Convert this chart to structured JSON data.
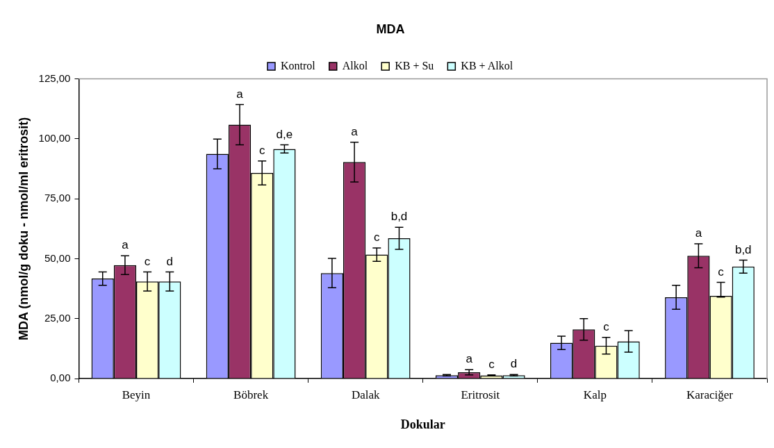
{
  "chart_data": {
    "type": "bar",
    "title": "MDA",
    "xlabel": "Dokular",
    "ylabel": "MDA (nmol/g doku - nmol/ml eritrosit)",
    "categories": [
      "Beyin",
      "Böbrek",
      "Dalak",
      "Eritrosit",
      "Kalp",
      "Karaciğer"
    ],
    "ylim": [
      0,
      125
    ],
    "yticks": [
      {
        "value": 0,
        "label": "0,00"
      },
      {
        "value": 25,
        "label": "25,00"
      },
      {
        "value": 50,
        "label": "50,00"
      },
      {
        "value": 75,
        "label": "75,00"
      },
      {
        "value": 100,
        "label": "100,00"
      },
      {
        "value": 125,
        "label": "125,00"
      }
    ],
    "grid": false,
    "legend": "top",
    "series": [
      {
        "name": "Kontrol",
        "color": "#9999ff",
        "values": [
          41.7,
          93.7,
          44.0,
          1.4,
          14.9,
          33.9
        ],
        "errors": [
          2.8,
          6.2,
          6.1,
          0.3,
          2.8,
          5.0
        ]
      },
      {
        "name": "Alkol",
        "color": "#993366",
        "values": [
          47.3,
          105.9,
          90.3,
          2.6,
          20.5,
          51.2
        ],
        "errors": [
          3.9,
          8.4,
          8.3,
          1.1,
          4.5,
          5.0
        ],
        "value_labels": [
          "a",
          "a",
          "a",
          "a",
          null,
          "a"
        ]
      },
      {
        "name": "KB + Su",
        "color": "#ffffcc",
        "values": [
          40.5,
          85.8,
          51.7,
          1.3,
          13.7,
          34.5
        ],
        "errors": [
          4.0,
          5.0,
          2.8,
          0.2,
          3.5,
          [
            34.0,
            40.1
          ]
        ],
        "value_labels": [
          "c",
          "c",
          "c",
          "c",
          "c",
          "c"
        ]
      },
      {
        "name": "KB + Alkol",
        "color": "#ccffff",
        "values": [
          40.5,
          95.8,
          58.5,
          1.4,
          15.5,
          46.7
        ],
        "errors": [
          4.0,
          1.7,
          4.6,
          0.3,
          4.5,
          2.7
        ],
        "value_labels": [
          "d",
          "d,e",
          "b,d",
          "d",
          null,
          "b,d"
        ]
      }
    ]
  }
}
